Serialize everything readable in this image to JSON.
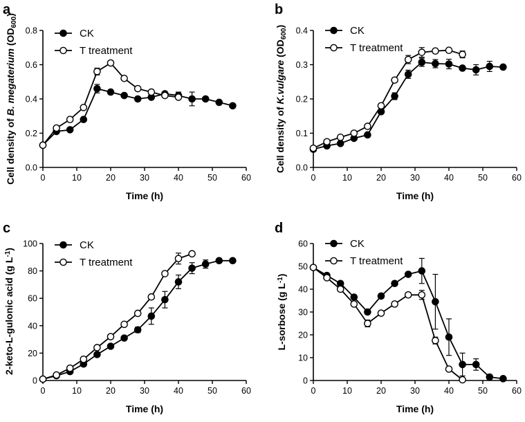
{
  "chart_data": [
    {
      "panel": "a",
      "type": "line",
      "xlabel": "Time (h)",
      "ylabel_parts": [
        "Cell density of ",
        "B. megaterium",
        " (OD",
        "600",
        ")"
      ],
      "xlim": [
        0,
        60
      ],
      "ylim": [
        0,
        0.8
      ],
      "xticks": [
        "0",
        "10",
        "20",
        "30",
        "40",
        "50",
        "60"
      ],
      "yticks": [
        "0.0",
        "0.2",
        "0.4",
        "0.6",
        "0.8"
      ],
      "legend": [
        "CK",
        "T treatment"
      ],
      "series": [
        {
          "name": "CK",
          "marker": "filled",
          "x": [
            0,
            4,
            8,
            12,
            16,
            20,
            24,
            28,
            32,
            36,
            40,
            44,
            48,
            52,
            56
          ],
          "y": [
            0.13,
            0.21,
            0.22,
            0.28,
            0.46,
            0.44,
            0.42,
            0.4,
            0.41,
            0.43,
            0.42,
            0.4,
            0.4,
            0.38,
            0.36
          ],
          "err": [
            0,
            0,
            0,
            0,
            0.025,
            0,
            0,
            0,
            0,
            0,
            0.02,
            0.04,
            0,
            0,
            0
          ]
        },
        {
          "name": "T treatment",
          "marker": "open",
          "x": [
            0,
            4,
            8,
            12,
            16,
            20,
            24,
            28,
            32,
            36,
            40
          ],
          "y": [
            0.13,
            0.23,
            0.28,
            0.35,
            0.56,
            0.61,
            0.52,
            0.46,
            0.44,
            0.42,
            0.41
          ],
          "err": [
            0,
            0,
            0,
            0,
            0.02,
            0,
            0,
            0,
            0,
            0,
            0
          ]
        }
      ]
    },
    {
      "panel": "b",
      "type": "line",
      "xlabel": "Time (h)",
      "ylabel_parts": [
        "Cell density of ",
        "K.vulgare",
        " (OD",
        "600",
        ")"
      ],
      "xlim": [
        0,
        60
      ],
      "ylim": [
        0,
        0.4
      ],
      "xticks": [
        "0",
        "10",
        "20",
        "30",
        "40",
        "50",
        "60"
      ],
      "yticks": [
        "0.0",
        "0.1",
        "0.2",
        "0.3",
        "0.4"
      ],
      "legend": [
        "CK",
        "T treatment"
      ],
      "series": [
        {
          "name": "CK",
          "marker": "filled",
          "x": [
            0,
            4,
            8,
            12,
            16,
            20,
            24,
            28,
            32,
            36,
            40,
            44,
            48,
            52,
            56
          ],
          "y": [
            0.053,
            0.063,
            0.07,
            0.085,
            0.095,
            0.163,
            0.208,
            0.272,
            0.307,
            0.303,
            0.302,
            0.29,
            0.285,
            0.295,
            0.293
          ],
          "err": [
            0,
            0,
            0,
            0,
            0,
            0,
            0.01,
            0.012,
            0.012,
            0.012,
            0.014,
            0,
            0.015,
            0.015,
            0
          ]
        },
        {
          "name": "T treatment",
          "marker": "open",
          "x": [
            0,
            4,
            8,
            12,
            16,
            20,
            24,
            28,
            32,
            36,
            40,
            44
          ],
          "y": [
            0.056,
            0.075,
            0.088,
            0.1,
            0.12,
            0.18,
            0.255,
            0.315,
            0.336,
            0.34,
            0.342,
            0.33
          ],
          "err": [
            0,
            0,
            0,
            0,
            0,
            0,
            0,
            0.012,
            0.014,
            0,
            0,
            0.01
          ]
        }
      ]
    },
    {
      "panel": "c",
      "type": "line",
      "xlabel": "Time (h)",
      "ylabel_parts": [
        "2-keto-L-gulonic acid (g L",
        "-1",
        ")"
      ],
      "xlim": [
        0,
        60
      ],
      "ylim": [
        0,
        100
      ],
      "xticks": [
        "0",
        "10",
        "20",
        "30",
        "40",
        "50",
        "60"
      ],
      "yticks": [
        "0",
        "20",
        "40",
        "60",
        "80",
        "100"
      ],
      "legend": [
        "CK",
        "T treatment"
      ],
      "series": [
        {
          "name": "CK",
          "marker": "filled",
          "x": [
            0,
            4,
            8,
            12,
            16,
            20,
            24,
            28,
            32,
            36,
            40,
            44,
            48,
            52,
            56
          ],
          "y": [
            1,
            3.5,
            6.5,
            12,
            19,
            25,
            31,
            37,
            47,
            59,
            72,
            82,
            85,
            87.5,
            87.5
          ],
          "err": [
            0,
            0,
            0,
            0,
            0,
            0,
            0,
            2,
            6,
            6,
            5,
            4,
            3,
            0,
            0
          ]
        },
        {
          "name": "T treatment",
          "marker": "open",
          "x": [
            0,
            4,
            8,
            12,
            16,
            20,
            24,
            28,
            32,
            36,
            40,
            44
          ],
          "y": [
            1,
            4,
            9,
            15.5,
            24,
            32,
            41,
            49,
            61,
            78,
            89,
            92.5
          ],
          "err": [
            0,
            0,
            0,
            0,
            0,
            0,
            0,
            0,
            0,
            0,
            4,
            0
          ]
        }
      ]
    },
    {
      "panel": "d",
      "type": "line",
      "xlabel": "Time (h)",
      "ylabel_parts": [
        "L-sorbose (g L",
        "-1",
        ")"
      ],
      "xlim": [
        0,
        60
      ],
      "ylim": [
        0,
        60
      ],
      "xticks": [
        "0",
        "10",
        "20",
        "30",
        "40",
        "50",
        "60"
      ],
      "yticks": [
        "0",
        "10",
        "20",
        "30",
        "40",
        "50",
        "60"
      ],
      "legend": [
        "CK",
        "T treatment"
      ],
      "series": [
        {
          "name": "CK",
          "marker": "filled",
          "x": [
            0,
            4,
            8,
            12,
            16,
            20,
            24,
            28,
            32,
            36,
            40,
            44,
            48,
            52,
            56
          ],
          "y": [
            49.5,
            46,
            42.5,
            36.5,
            30,
            37,
            42.5,
            46.5,
            48,
            34.5,
            19,
            7,
            7,
            1.5,
            0.8
          ],
          "err": [
            0,
            0,
            0,
            0,
            0,
            0,
            0,
            0,
            5.5,
            12,
            8,
            5,
            2.5,
            1,
            0
          ]
        },
        {
          "name": "T treatment",
          "marker": "open",
          "x": [
            0,
            4,
            8,
            12,
            16,
            20,
            24,
            28,
            32,
            36,
            40,
            44
          ],
          "y": [
            49.5,
            45,
            40,
            33.5,
            25,
            29.5,
            33.5,
            37.5,
            37.5,
            17.5,
            5,
            0.3
          ],
          "err": [
            0,
            0,
            0,
            0,
            1.5,
            0,
            1,
            1,
            2,
            1.5,
            0,
            0
          ]
        }
      ]
    }
  ]
}
